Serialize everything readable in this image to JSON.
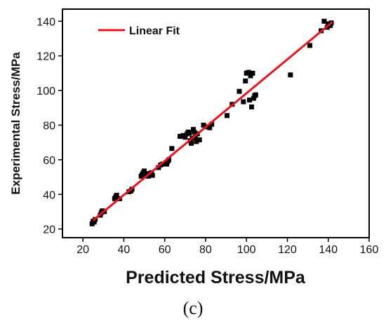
{
  "chart_data": {
    "type": "scatter",
    "title": "",
    "xlabel": "Predicted Stress/MPa",
    "ylabel": "Experimental Stress/MPa",
    "xlim": [
      10,
      160
    ],
    "ylim": [
      15,
      147
    ],
    "x_ticks": [
      20,
      40,
      60,
      80,
      100,
      120,
      140,
      160
    ],
    "y_ticks": [
      20,
      40,
      60,
      80,
      100,
      120,
      140
    ],
    "grid": false,
    "legend": {
      "position": "top-left",
      "entries": [
        "Linear Fit"
      ]
    },
    "colors": {
      "points": "#000000",
      "fit_line": "#e8141b"
    },
    "caption": "(c)",
    "series": [
      {
        "kind": "points",
        "points": [
          [
            24.5,
            23.0
          ],
          [
            25.0,
            24.5
          ],
          [
            25.5,
            24.0
          ],
          [
            26.0,
            25.5
          ],
          [
            28.5,
            28.0
          ],
          [
            29.0,
            29.5
          ],
          [
            29.5,
            30.5
          ],
          [
            30.5,
            30.0
          ],
          [
            35.5,
            37.5
          ],
          [
            36.0,
            38.5
          ],
          [
            36.5,
            39.5
          ],
          [
            38.0,
            37.5
          ],
          [
            42.5,
            41.5
          ],
          [
            43.5,
            42.0
          ],
          [
            44.0,
            43.0
          ],
          [
            48.5,
            50.5
          ],
          [
            49.0,
            51.5
          ],
          [
            49.5,
            52.5
          ],
          [
            50.0,
            53.5
          ],
          [
            51.0,
            52.0
          ],
          [
            52.0,
            50.5
          ],
          [
            53.0,
            51.5
          ],
          [
            53.5,
            52.5
          ],
          [
            54.0,
            51.0
          ],
          [
            57.0,
            55.5
          ],
          [
            58.0,
            57.0
          ],
          [
            59.0,
            57.5
          ],
          [
            61.0,
            57.5
          ],
          [
            61.5,
            59.0
          ],
          [
            62.0,
            60.0
          ],
          [
            63.5,
            66.5
          ],
          [
            67.5,
            73.5
          ],
          [
            69.0,
            74.0
          ],
          [
            70.0,
            73.0
          ],
          [
            71.0,
            75.0
          ],
          [
            71.5,
            76.0
          ],
          [
            72.0,
            75.5
          ],
          [
            72.5,
            71.0
          ],
          [
            73.0,
            69.5
          ],
          [
            73.5,
            72.5
          ],
          [
            74.0,
            77.5
          ],
          [
            74.5,
            76.0
          ],
          [
            75.0,
            73.0
          ],
          [
            75.5,
            70.5
          ],
          [
            76.0,
            75.0
          ],
          [
            77.0,
            71.5
          ],
          [
            79.0,
            80.0
          ],
          [
            81.0,
            79.0
          ],
          [
            82.0,
            78.5
          ],
          [
            83.0,
            80.5
          ],
          [
            90.5,
            85.5
          ],
          [
            93.0,
            92.0
          ],
          [
            96.5,
            99.5
          ],
          [
            98.5,
            93.5
          ],
          [
            99.5,
            105.5
          ],
          [
            100.0,
            110.0
          ],
          [
            101.0,
            110.5
          ],
          [
            101.5,
            94.5
          ],
          [
            102.0,
            108.5
          ],
          [
            102.5,
            90.5
          ],
          [
            103.0,
            110.0
          ],
          [
            103.5,
            95.5
          ],
          [
            104.0,
            97.0
          ],
          [
            104.5,
            97.5
          ],
          [
            121.5,
            109.0
          ],
          [
            131.0,
            126.0
          ],
          [
            136.5,
            134.5
          ],
          [
            138.0,
            140.0
          ],
          [
            139.5,
            136.5
          ],
          [
            140.0,
            138.5
          ],
          [
            141.0,
            137.5
          ],
          [
            141.5,
            139.0
          ]
        ]
      },
      {
        "kind": "line",
        "name": "Linear Fit",
        "points": [
          [
            25.0,
            25.0
          ],
          [
            142.0,
            139.5
          ]
        ]
      }
    ]
  }
}
